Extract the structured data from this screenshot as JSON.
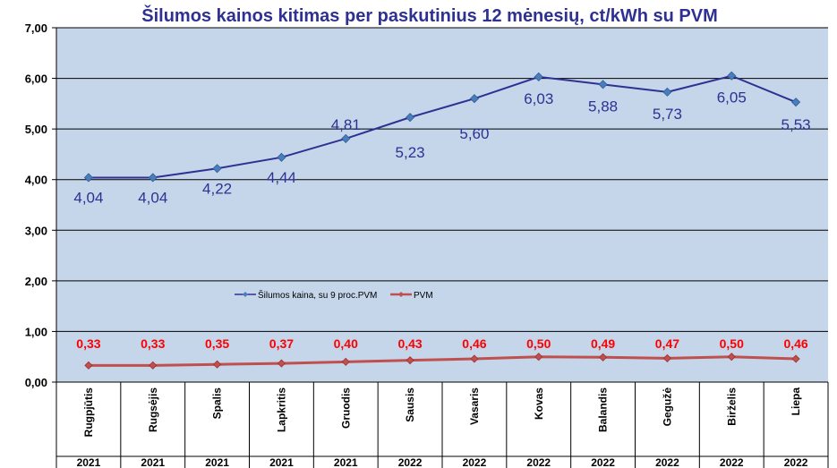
{
  "chart_data": {
    "type": "line",
    "title": "Šilumos kainos kitimas per paskutinius 12 mėnesių, ct/kWh su PVM",
    "categories": [
      "Rugpjūtis",
      "Rugsėjis",
      "Spalis",
      "Lapkritis",
      "Gruodis",
      "Sausis",
      "Vasaris",
      "Kovas",
      "Balandis",
      "Gegužė",
      "Birželis",
      "Liepa"
    ],
    "years": [
      "2021",
      "2021",
      "2021",
      "2021",
      "2021",
      "2022",
      "2022",
      "2022",
      "2022",
      "2022",
      "2022",
      "2022"
    ],
    "ylim": [
      0,
      7
    ],
    "yticks": [
      "0,00",
      "1,00",
      "2,00",
      "3,00",
      "4,00",
      "5,00",
      "6,00",
      "7,00"
    ],
    "grid": true,
    "legend_position": "center-left",
    "series": [
      {
        "name": "Šilumos kaina, su 9 proc.PVM",
        "color": "#2e3192",
        "values": [
          4.04,
          4.04,
          4.22,
          4.44,
          4.81,
          5.23,
          5.6,
          6.03,
          5.88,
          5.73,
          6.05,
          5.53
        ],
        "labels": [
          "4,04",
          "4,04",
          "4,22",
          "4,44",
          "4,81",
          "5,23",
          "5,60",
          "6,03",
          "5,88",
          "5,73",
          "6,05",
          "5,53"
        ]
      },
      {
        "name": "PVM",
        "color": "#c0504d",
        "values": [
          0.33,
          0.33,
          0.35,
          0.37,
          0.4,
          0.43,
          0.46,
          0.5,
          0.49,
          0.47,
          0.5,
          0.46
        ],
        "labels": [
          "0,33",
          "0,33",
          "0,35",
          "0,37",
          "0,40",
          "0,43",
          "0,46",
          "0,50",
          "0,49",
          "0,47",
          "0,50",
          "0,46"
        ]
      }
    ],
    "plot_background": "#c5d5ea"
  }
}
